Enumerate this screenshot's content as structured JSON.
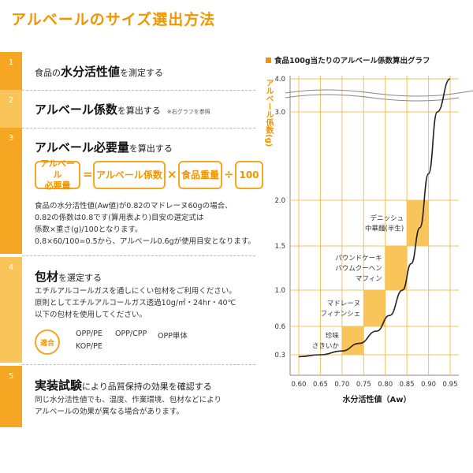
{
  "page_title": "アルベールのサイズ選出方法",
  "steps": [
    {
      "num": "1",
      "pre": "食品の",
      "bold": "水分活性値",
      "post": "を測定する"
    },
    {
      "num": "2",
      "bold": "アルベール係数",
      "post": "を算出する",
      "note": "※右グラフを参照"
    },
    {
      "num": "3",
      "bold": "アルベール必要量",
      "post": "を算出する"
    },
    {
      "num": "4",
      "bold": "包材",
      "post": "を選定する"
    },
    {
      "num": "5",
      "bold": "実装試験",
      "post": "により品質保持の効果を確認する"
    }
  ],
  "formula": {
    "box1": "アルベール\n必要量",
    "eq": "=",
    "box2": "アルベール係数",
    "times": "×",
    "box3": "食品重量",
    "div": "÷",
    "box4": "100"
  },
  "step3_lines": [
    "食品の水分活性値(Aw値)が0.82のマドレーヌ60gの場合、",
    "0.82の係数は0.8です(算用表より)目安の選定式は",
    "係数×重さ(g)/100となります。",
    "0.8×60/100=0.5から、アルベール0.6gが使用目安となります。"
  ],
  "step4_lines": [
    "エチルアルコールガスを通しにくい包材をご利用ください。",
    "原則としてエチルアルコールガス透過10g/㎡・24hr・40℃",
    "以下の包材を使用してください。"
  ],
  "tekigo_label": "適合",
  "packaging": [
    "OPP/PE",
    "OPP/CPP",
    "OPP単体",
    "KOP/PE"
  ],
  "step5_lines": [
    "同じ水分活性値でも、温度、作業環境、包材などにより",
    "アルベールの効果が異なる場合があります。"
  ],
  "colors": {
    "accent": "#f29600",
    "step_bar": "#f5a623",
    "band": "#f9c45a"
  },
  "chart_data": {
    "type": "line",
    "title": "食品100g当たりのアルベール係数算出グラフ",
    "xlabel": "水分活性値（Aw）",
    "ylabel": "アルベール係数(g)",
    "x_ticks": [
      "0.60",
      "0.65",
      "0.70",
      "0.75",
      "0.80",
      "0.85",
      "0.90",
      "0.95"
    ],
    "y_ticks": [
      "0.3",
      "0.6",
      "1.0",
      "1.5",
      "2.0",
      "3.0",
      "4.0"
    ],
    "grid": true,
    "curve": [
      [
        0.6,
        0.28
      ],
      [
        0.65,
        0.3
      ],
      [
        0.7,
        0.34
      ],
      [
        0.74,
        0.42
      ],
      [
        0.78,
        0.55
      ],
      [
        0.81,
        0.72
      ],
      [
        0.84,
        1.0
      ],
      [
        0.86,
        1.3
      ],
      [
        0.88,
        1.7
      ],
      [
        0.9,
        2.3
      ],
      [
        0.92,
        3.0
      ],
      [
        0.95,
        4.0
      ]
    ],
    "bands": [
      {
        "label": "珍味\nさきいか",
        "x": [
          0.7,
          0.75
        ],
        "y": [
          0.3,
          0.6
        ]
      },
      {
        "label": "マドレーヌ\nフィナンシェ",
        "x": [
          0.75,
          0.8
        ],
        "y": [
          0.6,
          1.0
        ]
      },
      {
        "label": "パウンドケーキ\nバウムクーヘン\nマフィン",
        "x": [
          0.8,
          0.85
        ],
        "y": [
          1.0,
          1.5
        ]
      },
      {
        "label": "デニッシュ\n中華麺(半生)",
        "x": [
          0.85,
          0.9
        ],
        "y": [
          1.5,
          2.0
        ]
      }
    ]
  }
}
